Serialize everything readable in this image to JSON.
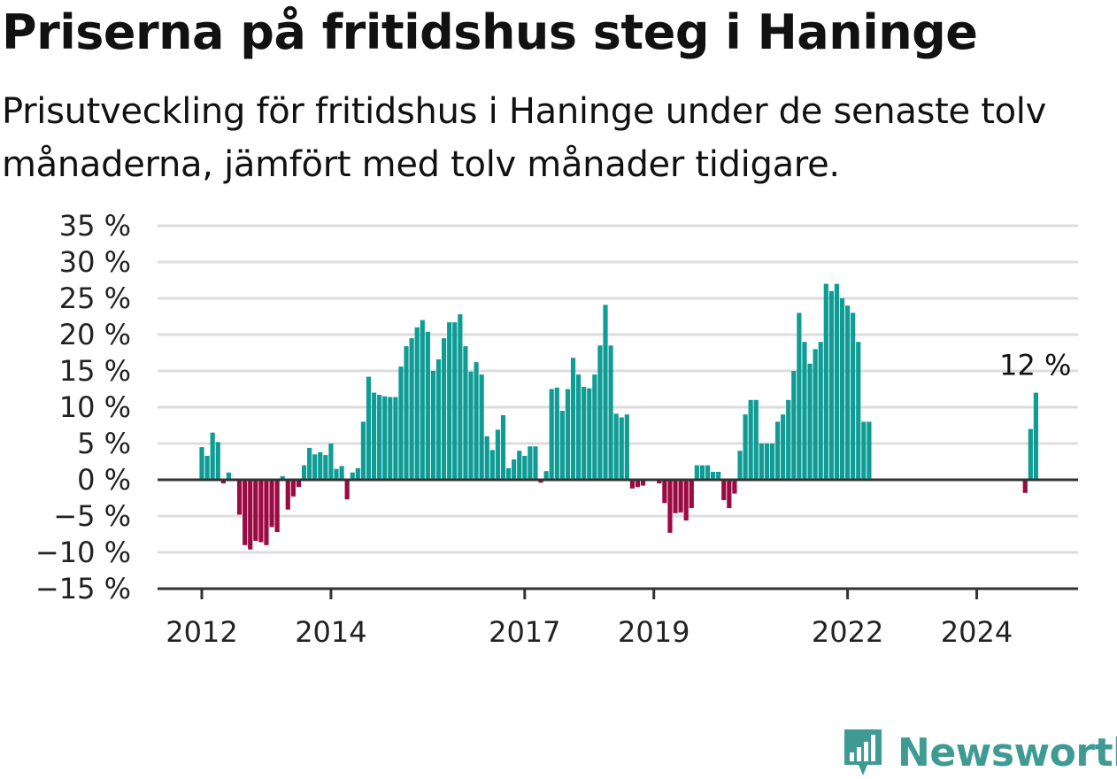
{
  "title": "Priserna på fritidshus steg i Haninge",
  "subtitle": "Prisutveckling för fritidshus i Haninge under de senaste tolv månaderna, jämfört med tolv månader tidigare.",
  "brand": {
    "name": "Newsworthy",
    "color": "#3f9a94"
  },
  "colors": {
    "positive": "#0e9c95",
    "negative": "#9b0a43",
    "grid": "#dddddd",
    "axis": "#333333"
  },
  "chart_data": {
    "type": "bar",
    "ylim": [
      -15,
      35
    ],
    "yticks": [
      -15,
      -10,
      -5,
      0,
      5,
      10,
      15,
      20,
      25,
      30,
      35
    ],
    "ytick_labels": [
      "−15 %",
      "−10 %",
      "−5 %",
      "0 %",
      "5 %",
      "10 %",
      "15 %",
      "20 %",
      "25 %",
      "30 %",
      "35 %"
    ],
    "xticks": [
      {
        "label": "2012",
        "year": 2012
      },
      {
        "label": "2014",
        "year": 2014
      },
      {
        "label": "2017",
        "year": 2017
      },
      {
        "label": "2019",
        "year": 2019
      },
      {
        "label": "2022",
        "year": 2022
      },
      {
        "label": "2024",
        "year": 2024
      }
    ],
    "annotation": {
      "text": "12 %",
      "x": "2024-12"
    },
    "grid": true,
    "x": [
      "2012-01",
      "2012-02",
      "2012-03",
      "2012-04",
      "2012-05",
      "2012-06",
      "2012-07",
      "2012-08",
      "2012-09",
      "2012-10",
      "2012-11",
      "2012-12",
      "2013-01",
      "2013-02",
      "2013-03",
      "2013-04",
      "2013-05",
      "2013-06",
      "2013-07",
      "2013-08",
      "2013-09",
      "2013-10",
      "2013-11",
      "2013-12",
      "2014-01",
      "2014-02",
      "2014-03",
      "2014-04",
      "2014-05",
      "2014-06",
      "2014-07",
      "2014-08",
      "2014-09",
      "2014-10",
      "2014-11",
      "2014-12",
      "2015-01",
      "2015-02",
      "2015-03",
      "2015-04",
      "2015-05",
      "2015-06",
      "2015-07",
      "2015-08",
      "2015-09",
      "2015-10",
      "2015-11",
      "2015-12",
      "2016-01",
      "2016-02",
      "2016-03",
      "2016-04",
      "2016-05",
      "2016-06",
      "2016-07",
      "2016-08",
      "2016-09",
      "2016-10",
      "2016-11",
      "2016-12",
      "2017-01",
      "2017-02",
      "2017-03",
      "2017-04",
      "2017-05",
      "2017-06",
      "2017-07",
      "2017-08",
      "2017-09",
      "2017-10",
      "2017-11",
      "2017-12",
      "2018-01",
      "2018-02",
      "2018-03",
      "2018-04",
      "2018-05",
      "2018-06",
      "2018-07",
      "2018-08",
      "2018-09",
      "2018-10",
      "2018-11",
      "2018-12",
      "2019-01",
      "2019-02",
      "2019-03",
      "2019-04",
      "2019-05",
      "2019-06",
      "2019-07",
      "2019-08",
      "2019-09",
      "2019-10",
      "2019-11",
      "2019-12",
      "2020-01",
      "2020-02",
      "2020-03",
      "2020-04",
      "2020-05",
      "2020-06",
      "2020-07",
      "2020-08",
      "2020-09",
      "2020-10",
      "2020-11",
      "2020-12",
      "2021-01",
      "2021-02",
      "2021-03",
      "2021-04",
      "2021-05",
      "2021-06",
      "2021-07",
      "2021-08",
      "2021-09",
      "2021-10",
      "2021-11",
      "2021-12",
      "2022-01",
      "2022-02",
      "2022-03",
      "2022-04",
      "2022-05",
      "2024-10",
      "2024-11",
      "2024-12"
    ],
    "values": [
      4.5,
      3.3,
      6.5,
      5.2,
      -0.5,
      1.0,
      0,
      -4.8,
      -9.0,
      -9.6,
      -8.4,
      -8.6,
      -9.0,
      -6.5,
      -7.2,
      0.5,
      -4.1,
      -2.3,
      -1.0,
      2.0,
      4.4,
      3.5,
      3.8,
      3.4,
      5.0,
      1.5,
      1.9,
      -2.7,
      1.0,
      1.6,
      8.0,
      14.2,
      12.0,
      11.7,
      11.5,
      11.4,
      11.4,
      15.6,
      18.4,
      19.5,
      21.0,
      22.0,
      20.4,
      15.0,
      16.6,
      19.5,
      21.7,
      21.7,
      22.8,
      18.4,
      14.9,
      16.2,
      14.5,
      6.0,
      4.1,
      6.9,
      8.9,
      1.6,
      2.8,
      4.0,
      3.3,
      4.6,
      4.6,
      -0.4,
      1.2,
      12.5,
      12.7,
      9.5,
      12.5,
      16.8,
      14.5,
      12.8,
      12.6,
      14.5,
      18.5,
      24.1,
      18.5,
      9.1,
      8.6,
      9.0,
      -1.2,
      -1.0,
      -0.8,
      0,
      0,
      -0.5,
      -3.2,
      -7.3,
      -4.6,
      -4.5,
      -5.6,
      -3.9,
      2.0,
      2.0,
      2.0,
      1.1,
      1.1,
      -2.8,
      -3.9,
      -1.9,
      4.0,
      9.0,
      11.0,
      11.0,
      5.0,
      5.0,
      5.0,
      8.0,
      9.0,
      11.0,
      15.0,
      23.0,
      19.0,
      16.0,
      18.0,
      19.0,
      27.0,
      26.0,
      27.0,
      25.0,
      24.0,
      23.0,
      19.0,
      8.0,
      8.0,
      -1.8,
      7.0,
      12.0
    ]
  }
}
